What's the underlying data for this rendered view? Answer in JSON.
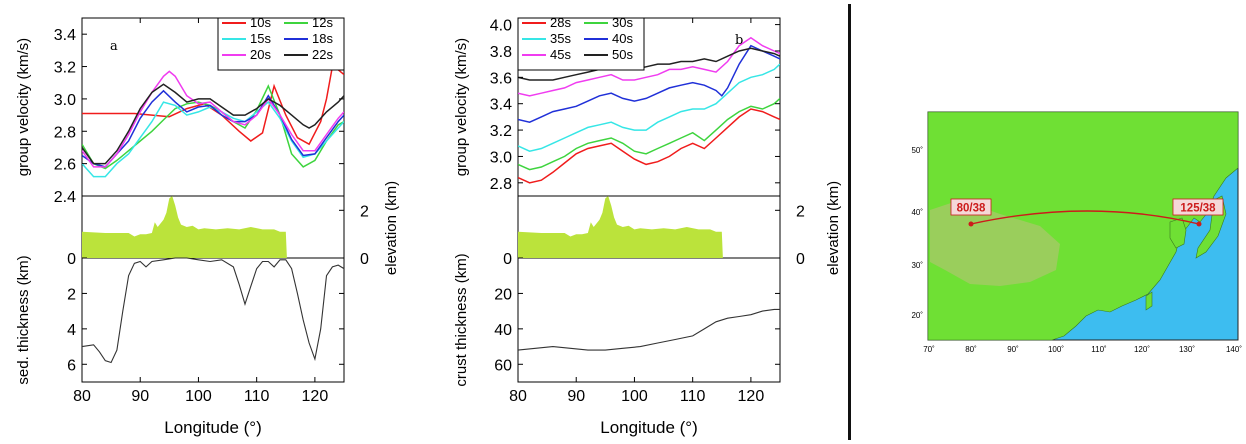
{
  "colors": {
    "terrain": "#bbe33b",
    "map_land": "#6fe034",
    "map_sea": "#3dbdf0",
    "map_route": "#cc1b1b",
    "label_bg": "#f5d8d8",
    "axis": "#000000"
  },
  "chart_data": [
    {
      "type": "line",
      "panel": "a",
      "x_ticks": [
        "80",
        "90",
        "100",
        "110",
        "120"
      ],
      "xlim": [
        80,
        125
      ],
      "xlabel": "Longitude (°)",
      "top": {
        "ylabel": "group velocity (km/s)",
        "ylim": [
          2.4,
          3.5
        ],
        "y_ticks": [
          "2.4",
          "2.6",
          "2.8",
          "3.0",
          "3.2",
          "3.4"
        ],
        "legend_position": "top-right",
        "series": [
          {
            "name": "10s",
            "color": "#f01c1c",
            "x": [
              80,
              83,
              86,
              89,
              92,
              95,
              98,
              101,
              104,
              107,
              109,
              111,
              113,
              115,
              117,
              119,
              121,
              122,
              123,
              124,
              125
            ],
            "y": [
              2.91,
              2.91,
              2.91,
              2.91,
              2.9,
              2.89,
              2.94,
              2.97,
              2.9,
              2.8,
              2.74,
              2.79,
              3.08,
              2.9,
              2.76,
              2.72,
              2.86,
              3.0,
              3.2,
              3.18,
              3.15
            ]
          },
          {
            "name": "12s",
            "color": "#3ed43e",
            "x": [
              80,
              82,
              84,
              86,
              88,
              90,
              92,
              94,
              96,
              98,
              100,
              102,
              104,
              106,
              108,
              110,
              112,
              114,
              116,
              118,
              120,
              122,
              124,
              125
            ],
            "y": [
              2.72,
              2.6,
              2.57,
              2.62,
              2.68,
              2.74,
              2.8,
              2.87,
              2.94,
              2.97,
              2.98,
              2.96,
              2.92,
              2.86,
              2.82,
              2.93,
              3.08,
              2.9,
              2.66,
              2.58,
              2.62,
              2.74,
              2.84,
              2.86
            ]
          },
          {
            "name": "15s",
            "color": "#36e6e6",
            "x": [
              80,
              82,
              84,
              86,
              88,
              90,
              92,
              94,
              96,
              98,
              100,
              102,
              104,
              106,
              108,
              110,
              112,
              114,
              116,
              118,
              120,
              122,
              124,
              125
            ],
            "y": [
              2.6,
              2.52,
              2.52,
              2.6,
              2.66,
              2.76,
              2.86,
              2.98,
              2.96,
              2.9,
              2.92,
              2.95,
              2.92,
              2.88,
              2.86,
              2.92,
              2.98,
              2.88,
              2.74,
              2.64,
              2.66,
              2.74,
              2.82,
              2.86
            ]
          },
          {
            "name": "18s",
            "color": "#2030d8",
            "x": [
              80,
              82,
              84,
              86,
              88,
              90,
              92,
              94,
              96,
              98,
              100,
              102,
              104,
              106,
              108,
              110,
              112,
              114,
              116,
              118,
              120,
              122,
              124,
              125
            ],
            "y": [
              2.65,
              2.6,
              2.58,
              2.66,
              2.74,
              2.88,
              2.98,
              3.05,
              2.98,
              2.92,
              2.95,
              2.96,
              2.9,
              2.86,
              2.86,
              2.9,
              3.02,
              2.9,
              2.75,
              2.65,
              2.66,
              2.76,
              2.86,
              2.9
            ]
          },
          {
            "name": "20s",
            "color": "#f03cf0",
            "x": [
              80,
              82,
              84,
              86,
              88,
              90,
              92,
              94,
              95,
              96,
              98,
              100,
              102,
              104,
              106,
              108,
              110,
              112,
              114,
              116,
              118,
              120,
              122,
              124,
              125
            ],
            "y": [
              2.68,
              2.58,
              2.58,
              2.66,
              2.78,
              2.92,
              3.04,
              3.14,
              3.17,
              3.14,
              3.02,
              2.97,
              2.98,
              2.92,
              2.86,
              2.84,
              2.9,
              3.0,
              2.9,
              2.78,
              2.68,
              2.68,
              2.78,
              2.88,
              2.92
            ]
          },
          {
            "name": "22s",
            "color": "#222222",
            "x": [
              80,
              82,
              84,
              86,
              88,
              90,
              92,
              94,
              96,
              98,
              100,
              102,
              104,
              106,
              108,
              110,
              112,
              114,
              116,
              118,
              119,
              120,
              122,
              124,
              125
            ],
            "y": [
              2.7,
              2.6,
              2.6,
              2.68,
              2.8,
              2.94,
              3.04,
              3.09,
              3.04,
              2.98,
              3.0,
              3.0,
              2.95,
              2.9,
              2.9,
              2.94,
              3.0,
              2.96,
              2.9,
              2.84,
              2.82,
              2.84,
              2.92,
              2.98,
              3.02
            ]
          }
        ]
      },
      "middle": {
        "ylabel": "elevation (km)",
        "ylim": [
          0,
          2.6
        ],
        "y_ticks": [
          "0",
          "2"
        ],
        "x": [
          80,
          84,
          88,
          89,
          90,
          91,
          92,
          92.5,
          93,
          94,
          94.5,
          95,
          95.5,
          96,
          96.5,
          97,
          98,
          99,
          100,
          101,
          103,
          105,
          107,
          109,
          111,
          113,
          114,
          115,
          115.2
        ],
        "y": [
          1.1,
          1.05,
          1.05,
          0.9,
          1.0,
          1.0,
          1.05,
          1.5,
          1.3,
          1.6,
          1.9,
          2.5,
          2.6,
          2.2,
          1.7,
          1.4,
          1.3,
          1.35,
          1.2,
          1.25,
          1.2,
          1.25,
          1.2,
          1.3,
          1.2,
          1.2,
          1.1,
          1.1,
          0
        ]
      },
      "bottom": {
        "ylabel": "sed. thickness (km)",
        "ylim": [
          0,
          7
        ],
        "y_ticks": [
          "0",
          "2",
          "4",
          "6"
        ],
        "x": [
          80,
          82,
          83,
          84,
          85,
          86,
          87,
          88,
          89,
          90,
          91,
          92,
          94,
          96,
          98,
          100,
          102,
          104,
          106,
          107,
          108,
          109,
          110,
          111,
          112,
          113,
          114,
          115,
          116,
          117,
          118,
          119,
          120,
          121,
          122,
          123,
          124,
          125
        ],
        "y": [
          5.0,
          4.9,
          5.3,
          5.8,
          5.9,
          5.2,
          3.0,
          1.0,
          0.3,
          0.2,
          0.5,
          0.2,
          0.1,
          0.0,
          0.0,
          0.1,
          0.2,
          0.1,
          0.5,
          1.5,
          2.6,
          1.6,
          0.6,
          0.2,
          0.2,
          0.5,
          0.1,
          0.1,
          0.6,
          2.0,
          3.5,
          4.8,
          5.7,
          4.0,
          1.0,
          0.5,
          0.4,
          0.6
        ]
      }
    },
    {
      "type": "line",
      "panel": "b",
      "x_ticks": [
        "80",
        "90",
        "100",
        "110",
        "120"
      ],
      "xlim": [
        80,
        125
      ],
      "xlabel": "Longitude (°)",
      "top": {
        "ylabel": "group velocity (km/s)",
        "ylim": [
          2.7,
          4.05
        ],
        "y_ticks": [
          "2.8",
          "3.0",
          "3.2",
          "3.4",
          "3.6",
          "3.8",
          "4.0"
        ],
        "legend_position": "top-left",
        "series": [
          {
            "name": "28s",
            "color": "#f01c1c",
            "x": [
              80,
              82,
              84,
              86,
              88,
              90,
              92,
              94,
              96,
              98,
              100,
              102,
              104,
              106,
              108,
              110,
              112,
              114,
              116,
              118,
              120,
              122,
              124,
              125
            ],
            "y": [
              2.84,
              2.8,
              2.82,
              2.88,
              2.95,
              3.02,
              3.06,
              3.08,
              3.1,
              3.04,
              2.98,
              2.94,
              2.96,
              3.0,
              3.06,
              3.1,
              3.06,
              3.14,
              3.22,
              3.3,
              3.36,
              3.34,
              3.3,
              3.28
            ]
          },
          {
            "name": "30s",
            "color": "#3ed43e",
            "x": [
              80,
              82,
              84,
              86,
              88,
              90,
              92,
              94,
              96,
              98,
              100,
              102,
              104,
              106,
              108,
              110,
              112,
              114,
              116,
              118,
              120,
              122,
              124,
              125
            ],
            "y": [
              2.94,
              2.9,
              2.92,
              2.96,
              3.0,
              3.06,
              3.1,
              3.12,
              3.14,
              3.1,
              3.04,
              3.02,
              3.06,
              3.1,
              3.14,
              3.18,
              3.12,
              3.2,
              3.28,
              3.34,
              3.38,
              3.36,
              3.4,
              3.44
            ]
          },
          {
            "name": "35s",
            "color": "#36e6e6",
            "x": [
              80,
              82,
              84,
              86,
              88,
              90,
              92,
              94,
              96,
              98,
              100,
              102,
              104,
              106,
              108,
              110,
              112,
              114,
              116,
              118,
              120,
              122,
              124,
              125
            ],
            "y": [
              3.08,
              3.04,
              3.06,
              3.1,
              3.14,
              3.18,
              3.22,
              3.24,
              3.26,
              3.22,
              3.2,
              3.2,
              3.26,
              3.3,
              3.34,
              3.36,
              3.36,
              3.4,
              3.48,
              3.56,
              3.6,
              3.62,
              3.66,
              3.7
            ]
          },
          {
            "name": "40s",
            "color": "#2030d8",
            "x": [
              80,
              82,
              84,
              86,
              88,
              90,
              92,
              94,
              96,
              98,
              100,
              102,
              104,
              106,
              108,
              110,
              112,
              114,
              115,
              116,
              118,
              120,
              122,
              124,
              125
            ],
            "y": [
              3.28,
              3.26,
              3.3,
              3.34,
              3.36,
              3.38,
              3.42,
              3.46,
              3.48,
              3.44,
              3.42,
              3.44,
              3.48,
              3.52,
              3.54,
              3.56,
              3.54,
              3.5,
              3.46,
              3.52,
              3.7,
              3.84,
              3.8,
              3.76,
              3.74
            ]
          },
          {
            "name": "45s",
            "color": "#f03cf0",
            "x": [
              80,
              82,
              84,
              86,
              88,
              90,
              92,
              94,
              96,
              98,
              100,
              102,
              104,
              106,
              108,
              110,
              112,
              114,
              116,
              118,
              120,
              122,
              124,
              125
            ],
            "y": [
              3.48,
              3.46,
              3.48,
              3.5,
              3.52,
              3.56,
              3.58,
              3.6,
              3.62,
              3.58,
              3.58,
              3.6,
              3.62,
              3.66,
              3.66,
              3.68,
              3.66,
              3.64,
              3.72,
              3.84,
              3.9,
              3.84,
              3.8,
              3.78
            ]
          },
          {
            "name": "50s",
            "color": "#222222",
            "x": [
              80,
              82,
              84,
              86,
              88,
              90,
              92,
              94,
              96,
              98,
              100,
              102,
              104,
              106,
              108,
              110,
              112,
              114,
              116,
              118,
              120,
              122,
              124,
              125
            ],
            "y": [
              3.6,
              3.58,
              3.58,
              3.58,
              3.6,
              3.62,
              3.64,
              3.66,
              3.68,
              3.66,
              3.66,
              3.68,
              3.7,
              3.7,
              3.72,
              3.72,
              3.74,
              3.72,
              3.76,
              3.8,
              3.82,
              3.8,
              3.78,
              3.76
            ]
          }
        ]
      },
      "middle": {
        "ylabel": "elevation (km)",
        "ylim": [
          0,
          2.6
        ],
        "y_ticks": [
          "0",
          "2"
        ],
        "x": [
          80,
          84,
          88,
          89,
          90,
          91,
          92,
          92.5,
          93,
          94,
          94.5,
          95,
          95.5,
          96,
          96.5,
          97,
          98,
          99,
          100,
          101,
          103,
          105,
          107,
          109,
          111,
          113,
          114,
          115,
          115.2
        ],
        "y": [
          1.1,
          1.05,
          1.05,
          0.9,
          1.0,
          1.0,
          1.05,
          1.5,
          1.3,
          1.6,
          1.9,
          2.5,
          2.6,
          2.2,
          1.7,
          1.4,
          1.3,
          1.35,
          1.2,
          1.25,
          1.2,
          1.25,
          1.2,
          1.3,
          1.2,
          1.2,
          1.1,
          1.1,
          0
        ]
      },
      "bottom": {
        "ylabel": "crust thickness (km)",
        "ylim": [
          0,
          70
        ],
        "y_ticks": [
          "0",
          "20",
          "40",
          "60"
        ],
        "x": [
          80,
          83,
          86,
          89,
          92,
          95,
          98,
          101,
          104,
          107,
          110,
          112,
          114,
          116,
          118,
          120,
          122,
          124,
          125
        ],
        "y": [
          52,
          51,
          50,
          51,
          52,
          52,
          51,
          50,
          48,
          46,
          44,
          40,
          36,
          34,
          33,
          32,
          30,
          29,
          29
        ]
      }
    }
  ],
  "map": {
    "lat_ticks": [
      "50˚",
      "40˚",
      "30˚",
      "20˚"
    ],
    "lon_ticks": [
      "70˚",
      "80˚",
      "90˚",
      "100˚",
      "110˚",
      "120˚",
      "130˚",
      "140˚"
    ],
    "endpoint_labels": [
      "80/38",
      "125/38"
    ]
  }
}
